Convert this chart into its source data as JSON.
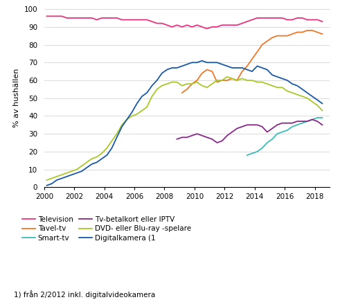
{
  "ylabel": "% av hushällen",
  "xlim": [
    2000,
    2019.0
  ],
  "ylim": [
    0,
    100
  ],
  "yticks": [
    0,
    10,
    20,
    30,
    40,
    50,
    60,
    70,
    80,
    90,
    100
  ],
  "xticks": [
    2000,
    2002,
    2004,
    2006,
    2008,
    2010,
    2012,
    2014,
    2016,
    2018
  ],
  "footnote": "1) från 2/2012 inkl. digitalvideokamera",
  "colors": {
    "Television": "#e8327d",
    "Tavel-tv": "#f07828",
    "Smart-tv": "#3abcb8",
    "Tv-betalkort eller IPTV": "#882888",
    "DVD-spelare": "#a8c828",
    "Digitalkamera": "#1858a8"
  },
  "legend_left": [
    "Television",
    "Smart-tv",
    "DVD- eller Blu-ray -spelare"
  ],
  "legend_right": [
    "Tavel-tv",
    "Tv-betalkort eller IPTV",
    "Digitalkamera (1"
  ],
  "legend_left_colors": [
    "#e8327d",
    "#3abcb8",
    "#a8c828"
  ],
  "legend_right_colors": [
    "#f07828",
    "#882888",
    "#1858a8"
  ],
  "Television_x": [
    2000.17,
    2000.5,
    2000.83,
    2001.17,
    2001.5,
    2001.83,
    2002.17,
    2002.5,
    2002.83,
    2003.17,
    2003.5,
    2003.83,
    2004.17,
    2004.5,
    2004.83,
    2005.17,
    2005.5,
    2005.83,
    2006.17,
    2006.5,
    2006.83,
    2007.17,
    2007.5,
    2007.83,
    2008.17,
    2008.5,
    2008.83,
    2009.17,
    2009.5,
    2009.83,
    2010.17,
    2010.5,
    2010.83,
    2011.17,
    2011.5,
    2011.83,
    2012.17,
    2012.5,
    2012.83,
    2013.17,
    2013.5,
    2013.83,
    2014.17,
    2014.5,
    2014.83,
    2015.17,
    2015.5,
    2015.83,
    2016.17,
    2016.5,
    2016.83,
    2017.17,
    2017.5,
    2017.83,
    2018.17,
    2018.5
  ],
  "Television_y": [
    96,
    96,
    96,
    96,
    95,
    95,
    95,
    95,
    95,
    95,
    94,
    95,
    95,
    95,
    95,
    94,
    94,
    94,
    94,
    94,
    94,
    93,
    92,
    92,
    91,
    90,
    91,
    90,
    91,
    90,
    91,
    90,
    89,
    90,
    90,
    91,
    91,
    91,
    91,
    92,
    93,
    94,
    95,
    95,
    95,
    95,
    95,
    95,
    94,
    94,
    95,
    95,
    94,
    94,
    94,
    93
  ],
  "Tavel_x": [
    2009.17,
    2009.5,
    2009.83,
    2010.17,
    2010.5,
    2010.83,
    2011.17,
    2011.5,
    2011.83,
    2012.17,
    2012.5,
    2012.83,
    2013.17,
    2013.5,
    2013.83,
    2014.17,
    2014.5,
    2014.83,
    2015.17,
    2015.5,
    2015.83,
    2016.17,
    2016.5,
    2016.83,
    2017.17,
    2017.5,
    2017.83,
    2018.17,
    2018.5
  ],
  "Tavel_y": [
    53,
    55,
    58,
    60,
    64,
    66,
    65,
    59,
    60,
    60,
    61,
    60,
    65,
    68,
    72,
    76,
    80,
    82,
    84,
    85,
    85,
    85,
    86,
    87,
    87,
    88,
    88,
    87,
    86
  ],
  "Smart_x": [
    2013.5,
    2013.83,
    2014.17,
    2014.5,
    2014.83,
    2015.17,
    2015.5,
    2015.83,
    2016.17,
    2016.5,
    2016.83,
    2017.17,
    2017.5,
    2017.83,
    2018.17,
    2018.5
  ],
  "Smart_y": [
    18,
    19,
    20,
    22,
    25,
    27,
    30,
    31,
    32,
    34,
    35,
    36,
    37,
    38,
    39,
    39
  ],
  "Betalkort_x": [
    2008.83,
    2009.17,
    2009.5,
    2009.83,
    2010.17,
    2010.5,
    2010.83,
    2011.17,
    2011.5,
    2011.83,
    2012.17,
    2012.5,
    2012.83,
    2013.17,
    2013.5,
    2013.83,
    2014.17,
    2014.5,
    2014.83,
    2015.17,
    2015.5,
    2015.83,
    2016.17,
    2016.5,
    2016.83,
    2017.17,
    2017.5,
    2017.83,
    2018.17,
    2018.5
  ],
  "Betalkort_y": [
    27,
    28,
    28,
    29,
    30,
    29,
    28,
    27,
    25,
    26,
    29,
    31,
    33,
    34,
    35,
    35,
    35,
    34,
    31,
    33,
    35,
    36,
    36,
    36,
    37,
    37,
    37,
    38,
    37,
    35
  ],
  "DVD_x": [
    2000.17,
    2000.5,
    2000.83,
    2001.17,
    2001.5,
    2001.83,
    2002.17,
    2002.5,
    2002.83,
    2003.17,
    2003.5,
    2003.83,
    2004.17,
    2004.5,
    2004.83,
    2005.17,
    2005.5,
    2005.83,
    2006.17,
    2006.5,
    2006.83,
    2007.17,
    2007.5,
    2007.83,
    2008.17,
    2008.5,
    2008.83,
    2009.17,
    2009.5,
    2009.83,
    2010.17,
    2010.5,
    2010.83,
    2011.17,
    2011.5,
    2011.83,
    2012.17,
    2012.5,
    2012.83,
    2013.17,
    2013.5,
    2013.83,
    2014.17,
    2014.5,
    2014.83,
    2015.17,
    2015.5,
    2015.83,
    2016.17,
    2016.5,
    2016.83,
    2017.17,
    2017.5,
    2017.83,
    2018.17,
    2018.5
  ],
  "DVD_y": [
    4,
    5,
    6,
    7,
    8,
    9,
    10,
    12,
    14,
    16,
    17,
    19,
    22,
    26,
    30,
    35,
    38,
    40,
    41,
    43,
    45,
    51,
    55,
    57,
    58,
    59,
    59,
    57,
    58,
    58,
    59,
    57,
    56,
    58,
    60,
    60,
    62,
    61,
    60,
    61,
    60,
    60,
    59,
    59,
    58,
    57,
    56,
    56,
    54,
    53,
    52,
    51,
    50,
    48,
    46,
    43
  ],
  "Digi_x": [
    2000.17,
    2000.5,
    2000.83,
    2001.17,
    2001.5,
    2001.83,
    2002.17,
    2002.5,
    2002.83,
    2003.17,
    2003.5,
    2003.83,
    2004.17,
    2004.5,
    2004.83,
    2005.17,
    2005.5,
    2005.83,
    2006.17,
    2006.5,
    2006.83,
    2007.17,
    2007.5,
    2007.83,
    2008.17,
    2008.5,
    2008.83,
    2009.17,
    2009.5,
    2009.83,
    2010.17,
    2010.5,
    2010.83,
    2011.17,
    2011.5,
    2011.83,
    2012.17,
    2012.5,
    2012.83,
    2013.17,
    2013.5,
    2013.83,
    2014.17,
    2014.5,
    2014.83,
    2015.17,
    2015.5,
    2015.83,
    2016.17,
    2016.5,
    2016.83,
    2017.17,
    2017.5,
    2017.83,
    2018.17,
    2018.5
  ],
  "Digi_y": [
    1,
    2,
    4,
    5,
    6,
    7,
    8,
    9,
    11,
    13,
    14,
    16,
    18,
    22,
    28,
    34,
    38,
    42,
    47,
    51,
    53,
    57,
    60,
    64,
    66,
    67,
    67,
    68,
    69,
    70,
    70,
    71,
    70,
    70,
    70,
    69,
    68,
    67,
    67,
    67,
    66,
    65,
    68,
    67,
    66,
    63,
    62,
    61,
    60,
    58,
    57,
    55,
    53,
    51,
    49,
    47
  ]
}
